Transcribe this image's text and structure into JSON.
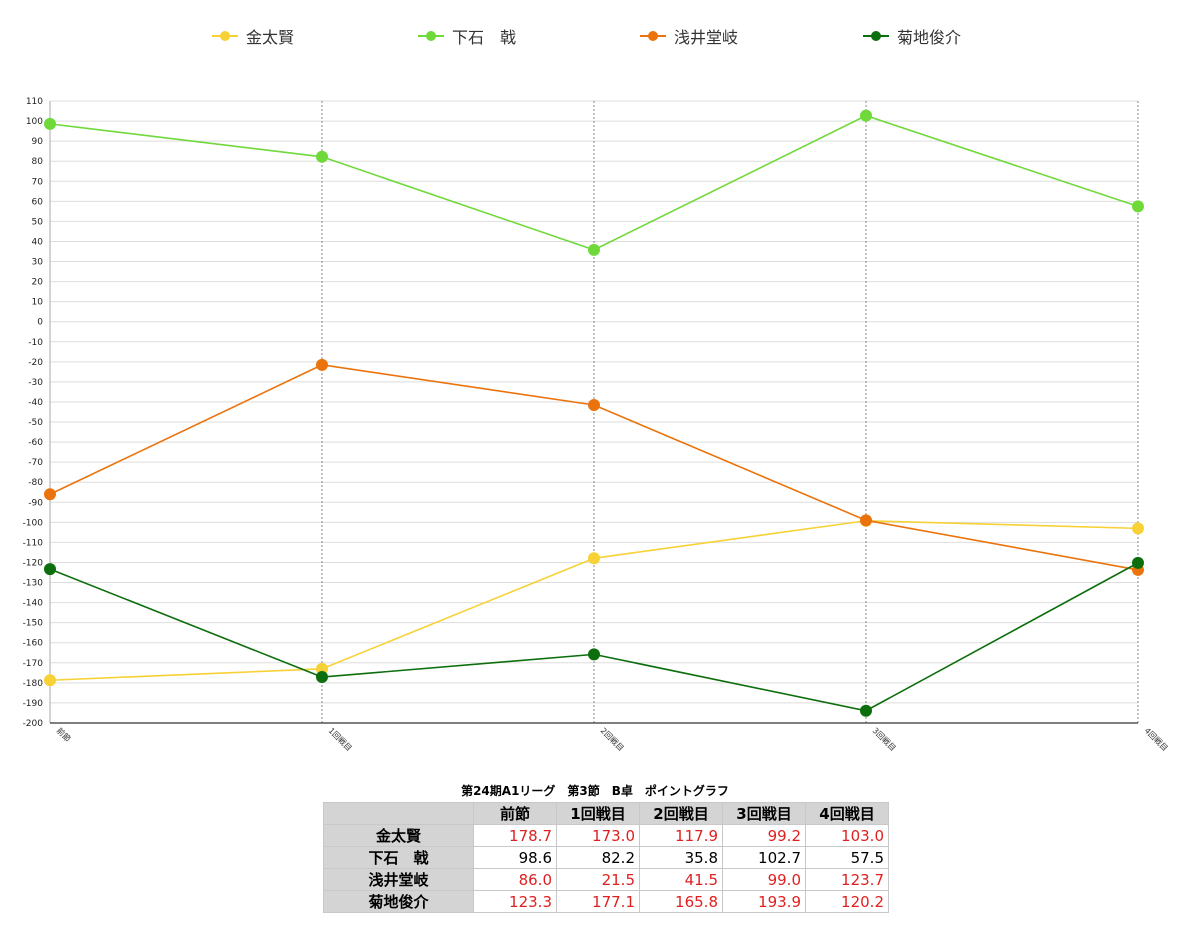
{
  "chart_data": {
    "type": "line",
    "categories": [
      "前節",
      "1回戦目",
      "2回戦目",
      "3回戦目",
      "4回戦目"
    ],
    "ylim": [
      -200,
      110
    ],
    "ytick_step": 10,
    "grid": true,
    "legend_position": "top",
    "series": [
      {
        "name": "金太賢",
        "color": "#f7d135",
        "values": [
          -178.7,
          -173.0,
          -117.9,
          -99.2,
          -103.0
        ]
      },
      {
        "name": "下石　戟",
        "color": "#6fd93a",
        "values": [
          98.6,
          82.2,
          35.8,
          102.7,
          57.5
        ]
      },
      {
        "name": "浅井堂岐",
        "color": "#ea730c",
        "values": [
          -86.0,
          -21.5,
          -41.5,
          -99.0,
          -123.7
        ]
      },
      {
        "name": "菊地俊介",
        "color": "#0c6e0c",
        "values": [
          -123.3,
          -177.1,
          -165.8,
          -193.9,
          -120.2
        ]
      }
    ]
  },
  "table": {
    "caption": "第24期A1リーグ　第3節　B卓　ポイントグラフ",
    "headers": [
      "前節",
      "1回戦目",
      "2回戦目",
      "3回戦目",
      "4回戦目"
    ],
    "negative_color": "#e02020",
    "rows": [
      {
        "name": "金太賢",
        "cells": [
          "178.7",
          "173.0",
          "117.9",
          "99.2",
          "103.0"
        ],
        "negative": [
          true,
          true,
          true,
          true,
          true
        ]
      },
      {
        "name": "下石　戟",
        "cells": [
          "98.6",
          "82.2",
          "35.8",
          "102.7",
          "57.5"
        ],
        "negative": [
          false,
          false,
          false,
          false,
          false
        ]
      },
      {
        "name": "浅井堂岐",
        "cells": [
          "86.0",
          "21.5",
          "41.5",
          "99.0",
          "123.7"
        ],
        "negative": [
          true,
          true,
          true,
          true,
          true
        ]
      },
      {
        "name": "菊地俊介",
        "cells": [
          "123.3",
          "177.1",
          "165.8",
          "193.9",
          "120.2"
        ],
        "negative": [
          true,
          true,
          true,
          true,
          true
        ]
      }
    ]
  }
}
